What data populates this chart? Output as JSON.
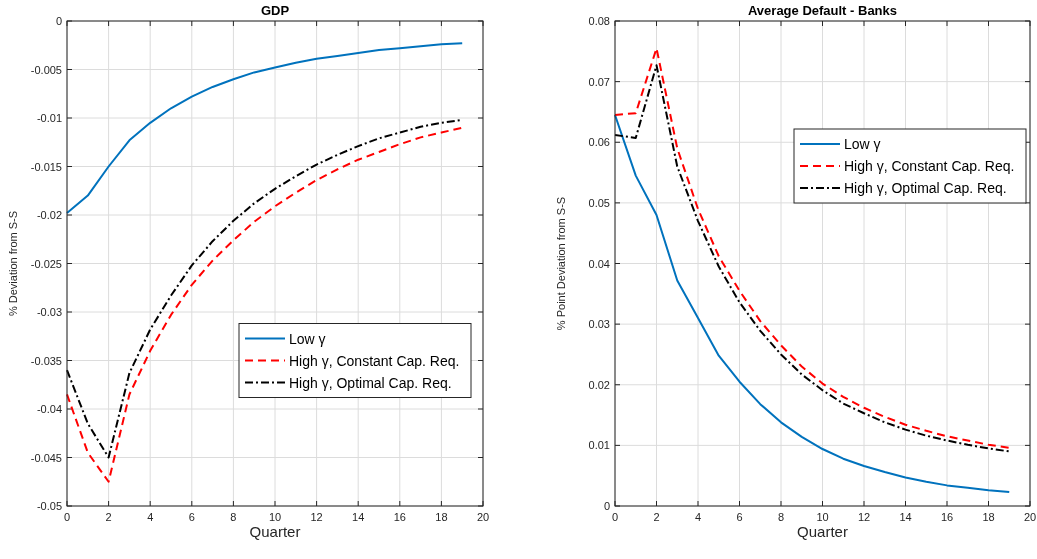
{
  "chart_data": [
    {
      "type": "line",
      "title": "GDP",
      "xlabel": "Quarter",
      "ylabel": "% Deviation from S-S",
      "x": [
        0,
        1,
        2,
        3,
        4,
        5,
        6,
        7,
        8,
        9,
        10,
        11,
        12,
        13,
        14,
        15,
        16,
        17,
        18,
        19
      ],
      "xlim": [
        0,
        20
      ],
      "xticks": [
        0,
        2,
        4,
        6,
        8,
        10,
        12,
        14,
        16,
        18,
        20
      ],
      "ylim": [
        -0.05,
        0
      ],
      "yticks": [
        -0.05,
        -0.045,
        -0.04,
        -0.035,
        -0.03,
        -0.025,
        -0.02,
        -0.015,
        -0.01,
        -0.005,
        0
      ],
      "grid": true,
      "legend": "right",
      "series": [
        {
          "name": "Low γ",
          "color": "#0072bd",
          "line_style": "solid",
          "values": [
            -0.0198,
            -0.018,
            -0.015,
            -0.0123,
            -0.0105,
            -0.009,
            -0.0078,
            -0.0068,
            -0.006,
            -0.0053,
            -0.0048,
            -0.0043,
            -0.0039,
            -0.0036,
            -0.0033,
            -0.003,
            -0.0028,
            -0.0026,
            -0.0024,
            -0.0023
          ]
        },
        {
          "name": "High γ, Constant Cap. Req.",
          "color": "#ff0000",
          "line_style": "dashed",
          "values": [
            -0.0385,
            -0.0445,
            -0.0475,
            -0.0385,
            -0.034,
            -0.0303,
            -0.0272,
            -0.0247,
            -0.0226,
            -0.0207,
            -0.0191,
            -0.0177,
            -0.0164,
            -0.0153,
            -0.0143,
            -0.0135,
            -0.0127,
            -0.012,
            -0.0115,
            -0.011
          ]
        },
        {
          "name": "High γ, Optimal Cap. Req.",
          "color": "#000000",
          "line_style": "dashdot",
          "values": [
            -0.036,
            -0.0415,
            -0.045,
            -0.0363,
            -0.0318,
            -0.0283,
            -0.0252,
            -0.0227,
            -0.0206,
            -0.0188,
            -0.0173,
            -0.016,
            -0.0148,
            -0.0138,
            -0.0129,
            -0.0121,
            -0.0115,
            -0.0109,
            -0.0105,
            -0.0102
          ]
        }
      ]
    },
    {
      "type": "line",
      "title": "Average Default - Banks",
      "xlabel": "Quarter",
      "ylabel": "% Point Deviation from S-S",
      "x": [
        0,
        1,
        2,
        3,
        4,
        5,
        6,
        7,
        8,
        9,
        10,
        11,
        12,
        13,
        14,
        15,
        16,
        17,
        18,
        19
      ],
      "xlim": [
        0,
        20
      ],
      "xticks": [
        0,
        2,
        4,
        6,
        8,
        10,
        12,
        14,
        16,
        18,
        20
      ],
      "ylim": [
        0,
        0.08
      ],
      "yticks": [
        0,
        0.01,
        0.02,
        0.03,
        0.04,
        0.05,
        0.06,
        0.07,
        0.08
      ],
      "grid": true,
      "legend": "top right",
      "series": [
        {
          "name": "Low γ",
          "color": "#0072bd",
          "line_style": "solid",
          "values": [
            0.0645,
            0.0545,
            0.048,
            0.0372,
            0.031,
            0.0248,
            0.0205,
            0.0168,
            0.0138,
            0.0114,
            0.0094,
            0.0078,
            0.0066,
            0.0056,
            0.0047,
            0.004,
            0.0034,
            0.003,
            0.0026,
            0.0023
          ]
        },
        {
          "name": "High γ, Constant Cap. Req.",
          "color": "#ff0000",
          "line_style": "dashed",
          "values": [
            0.0645,
            0.0648,
            0.0755,
            0.059,
            0.049,
            0.0412,
            0.0355,
            0.0305,
            0.0265,
            0.023,
            0.0202,
            0.018,
            0.0162,
            0.0147,
            0.0134,
            0.0124,
            0.0115,
            0.0108,
            0.0101,
            0.0096
          ]
        },
        {
          "name": "High γ, Optimal Cap. Req.",
          "color": "#000000",
          "line_style": "dashdot",
          "values": [
            0.0612,
            0.0607,
            0.0727,
            0.056,
            0.047,
            0.0395,
            0.0336,
            0.0289,
            0.025,
            0.0217,
            0.0191,
            0.0169,
            0.0153,
            0.0138,
            0.0126,
            0.0116,
            0.0108,
            0.0101,
            0.0095,
            0.009
          ]
        }
      ]
    }
  ]
}
